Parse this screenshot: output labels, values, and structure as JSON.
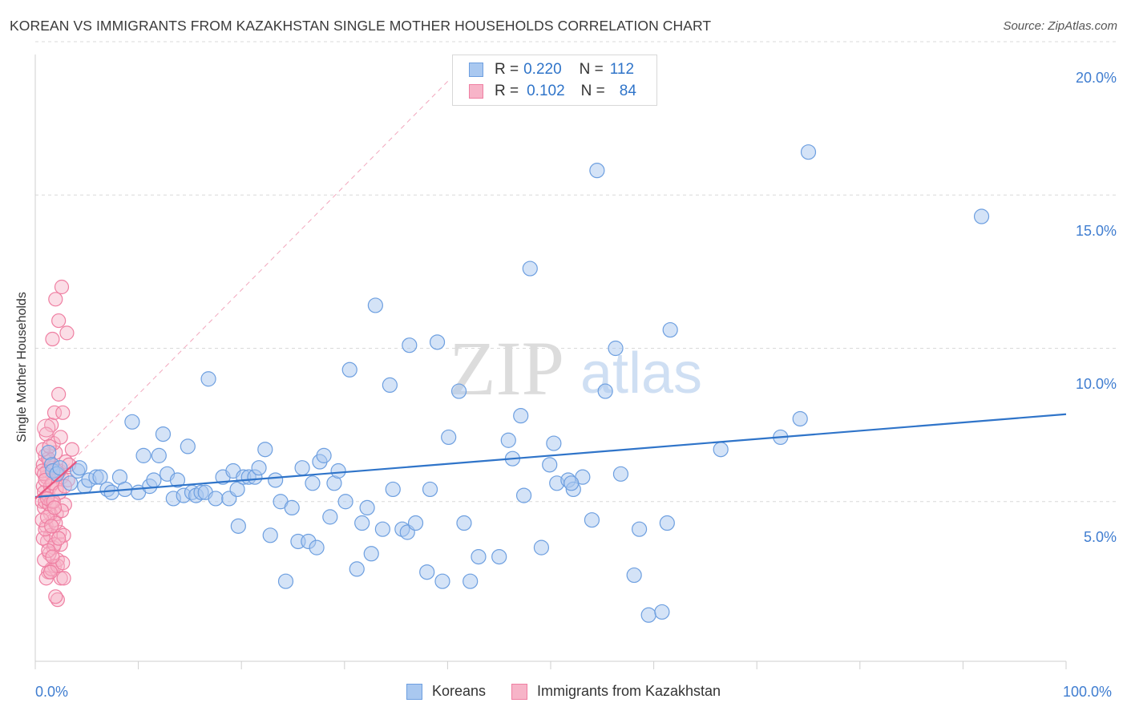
{
  "header": {
    "title": "KOREAN VS IMMIGRANTS FROM KAZAKHSTAN SINGLE MOTHER HOUSEHOLDS CORRELATION CHART",
    "source": "Source: ZipAtlas.com"
  },
  "watermark": {
    "zip": "ZIP",
    "atlas": "atlas"
  },
  "colors": {
    "blue_fill": "#a9c8f0",
    "blue_stroke": "#6d9fe0",
    "blue_line": "#2f74c9",
    "pink_fill": "#f7b4c8",
    "pink_stroke": "#ef7fa2",
    "pink_line": "#e8557f",
    "grid": "#d9d9d9",
    "tick_text": "#3f7dd0"
  },
  "legend": {
    "rows": [
      {
        "r_label": "R = ",
        "r_value": "0.220",
        "n_label": "N = ",
        "n_value": "112"
      },
      {
        "r_label": "R = ",
        "r_value": "0.102",
        "n_label": "N = ",
        "n_value": "84"
      }
    ]
  },
  "bottom_legend": {
    "series1": "Koreans",
    "series2": "Immigrants from Kazakhstan"
  },
  "chart_data": {
    "type": "scatter",
    "title": "KOREAN VS IMMIGRANTS FROM KAZAKHSTAN SINGLE MOTHER HOUSEHOLDS CORRELATION CHART",
    "xlabel": "",
    "ylabel": "Single Mother Households",
    "xlim": [
      0,
      100
    ],
    "ylim": [
      0,
      20
    ],
    "x_tick_labels": [
      "0.0%",
      "100.0%"
    ],
    "y_tick_labels": [
      "5.0%",
      "10.0%",
      "15.0%",
      "20.0%"
    ],
    "y_ticks": [
      5,
      10,
      15,
      20
    ],
    "grid": true,
    "series": [
      {
        "name": "Koreans",
        "r": 0.22,
        "n": 112,
        "trend": {
          "x0": 0,
          "y0": 5.15,
          "x1": 100,
          "y1": 7.85
        },
        "points": [
          [
            1.3,
            6.6
          ],
          [
            1.6,
            6.2
          ],
          [
            1.7,
            6.0
          ],
          [
            2.1,
            5.9
          ],
          [
            2.4,
            6.1
          ],
          [
            3.4,
            5.6
          ],
          [
            4.1,
            6.0
          ],
          [
            4.3,
            6.1
          ],
          [
            4.8,
            5.5
          ],
          [
            5.2,
            5.7
          ],
          [
            5.9,
            5.8
          ],
          [
            6.3,
            5.8
          ],
          [
            7.0,
            5.4
          ],
          [
            7.4,
            5.3
          ],
          [
            8.2,
            5.8
          ],
          [
            8.7,
            5.4
          ],
          [
            9.4,
            7.6
          ],
          [
            10.0,
            5.3
          ],
          [
            10.5,
            6.5
          ],
          [
            11.1,
            5.5
          ],
          [
            11.5,
            5.7
          ],
          [
            12.0,
            6.5
          ],
          [
            12.4,
            7.2
          ],
          [
            12.8,
            5.9
          ],
          [
            13.4,
            5.1
          ],
          [
            13.8,
            5.7
          ],
          [
            14.4,
            5.2
          ],
          [
            14.8,
            6.8
          ],
          [
            15.2,
            5.3
          ],
          [
            15.6,
            5.2
          ],
          [
            16.1,
            5.3
          ],
          [
            16.5,
            5.3
          ],
          [
            16.8,
            9.0
          ],
          [
            17.5,
            5.1
          ],
          [
            18.2,
            5.8
          ],
          [
            18.8,
            5.1
          ],
          [
            19.2,
            6.0
          ],
          [
            19.6,
            5.4
          ],
          [
            19.7,
            4.2
          ],
          [
            20.2,
            5.8
          ],
          [
            20.7,
            5.8
          ],
          [
            21.3,
            5.8
          ],
          [
            21.7,
            6.1
          ],
          [
            22.3,
            6.7
          ],
          [
            22.8,
            3.9
          ],
          [
            23.3,
            5.7
          ],
          [
            23.8,
            5.0
          ],
          [
            24.3,
            2.4
          ],
          [
            24.9,
            4.8
          ],
          [
            25.5,
            3.7
          ],
          [
            25.9,
            6.1
          ],
          [
            26.5,
            3.7
          ],
          [
            26.9,
            5.6
          ],
          [
            27.3,
            3.5
          ],
          [
            27.6,
            6.3
          ],
          [
            28.0,
            6.5
          ],
          [
            28.6,
            4.5
          ],
          [
            29.0,
            5.6
          ],
          [
            29.4,
            6.0
          ],
          [
            30.1,
            5.0
          ],
          [
            30.5,
            9.3
          ],
          [
            31.2,
            2.8
          ],
          [
            31.7,
            4.3
          ],
          [
            32.2,
            4.8
          ],
          [
            32.6,
            3.3
          ],
          [
            33.0,
            11.4
          ],
          [
            33.7,
            4.1
          ],
          [
            34.4,
            8.8
          ],
          [
            34.7,
            5.4
          ],
          [
            35.6,
            4.1
          ],
          [
            36.1,
            4.0
          ],
          [
            36.3,
            10.1
          ],
          [
            36.9,
            4.3
          ],
          [
            38.0,
            2.7
          ],
          [
            38.3,
            5.4
          ],
          [
            39.0,
            10.2
          ],
          [
            39.5,
            2.4
          ],
          [
            40.1,
            7.1
          ],
          [
            41.1,
            8.6
          ],
          [
            41.6,
            4.3
          ],
          [
            42.2,
            2.4
          ],
          [
            43.0,
            3.2
          ],
          [
            45.0,
            3.2
          ],
          [
            45.9,
            7.0
          ],
          [
            46.3,
            6.4
          ],
          [
            47.1,
            7.8
          ],
          [
            47.4,
            5.2
          ],
          [
            48.0,
            12.6
          ],
          [
            49.1,
            3.5
          ],
          [
            49.9,
            6.2
          ],
          [
            50.3,
            6.9
          ],
          [
            50.6,
            5.6
          ],
          [
            51.7,
            5.7
          ],
          [
            52.2,
            5.4
          ],
          [
            53.1,
            5.8
          ],
          [
            54.0,
            4.4
          ],
          [
            54.5,
            15.8
          ],
          [
            55.3,
            8.6
          ],
          [
            56.3,
            10.0
          ],
          [
            56.8,
            5.9
          ],
          [
            58.1,
            2.6
          ],
          [
            58.6,
            4.1
          ],
          [
            59.5,
            1.3
          ],
          [
            60.8,
            1.4
          ],
          [
            61.3,
            4.3
          ],
          [
            61.6,
            10.6
          ],
          [
            66.5,
            6.7
          ],
          [
            72.3,
            7.1
          ],
          [
            74.2,
            7.7
          ],
          [
            75.0,
            16.4
          ],
          [
            91.8,
            14.3
          ],
          [
            52.0,
            5.6
          ]
        ]
      },
      {
        "name": "Immigrants from Kazakhstan",
        "r": 0.102,
        "n": 84,
        "trend": {
          "x0": 0,
          "y0": 5.1,
          "x1": 4.0,
          "y1": 6.3
        },
        "points": [
          [
            0.2,
            5.0
          ],
          [
            0.3,
            5.5
          ],
          [
            0.3,
            6.2
          ],
          [
            0.4,
            4.8
          ],
          [
            0.4,
            5.3
          ],
          [
            0.5,
            6.5
          ],
          [
            0.5,
            5.0
          ],
          [
            0.6,
            4.2
          ],
          [
            0.6,
            5.8
          ],
          [
            0.7,
            3.7
          ],
          [
            0.7,
            6.0
          ],
          [
            0.8,
            5.2
          ],
          [
            0.8,
            2.7
          ],
          [
            0.9,
            4.9
          ],
          [
            0.9,
            6.3
          ],
          [
            1.0,
            5.5
          ],
          [
            1.0,
            3.9
          ],
          [
            1.1,
            7.5
          ],
          [
            1.1,
            5.0
          ],
          [
            1.2,
            10.3
          ],
          [
            1.2,
            6.1
          ],
          [
            1.3,
            4.4
          ],
          [
            1.3,
            3.5
          ],
          [
            1.4,
            7.9
          ],
          [
            1.4,
            2.9
          ],
          [
            1.5,
            11.6
          ],
          [
            1.5,
            6.6
          ],
          [
            1.6,
            4.6
          ],
          [
            1.6,
            5.4
          ],
          [
            1.7,
            1.8
          ],
          [
            1.7,
            3.1
          ],
          [
            1.8,
            10.9
          ],
          [
            1.8,
            8.5
          ],
          [
            1.9,
            4.0
          ],
          [
            1.9,
            6.0
          ],
          [
            2.0,
            2.5
          ],
          [
            2.0,
            3.6
          ],
          [
            2.1,
            12.0
          ],
          [
            2.1,
            5.8
          ],
          [
            2.2,
            7.9
          ],
          [
            2.3,
            2.5
          ],
          [
            2.3,
            3.9
          ],
          [
            2.4,
            4.9
          ],
          [
            2.5,
            6.3
          ],
          [
            2.6,
            10.5
          ],
          [
            2.7,
            5.7
          ],
          [
            2.8,
            6.2
          ],
          [
            3.1,
            6.7
          ],
          [
            0.2,
            6.0
          ],
          [
            0.3,
            3.8
          ],
          [
            0.4,
            5.9
          ],
          [
            0.5,
            4.1
          ],
          [
            0.6,
            2.5
          ],
          [
            0.7,
            5.1
          ],
          [
            0.8,
            6.4
          ],
          [
            0.9,
            3.3
          ],
          [
            1.0,
            4.6
          ],
          [
            1.1,
            2.8
          ],
          [
            1.2,
            5.6
          ],
          [
            1.3,
            6.9
          ],
          [
            1.4,
            3.6
          ],
          [
            1.5,
            4.3
          ],
          [
            1.6,
            5.9
          ],
          [
            1.7,
            2.9
          ],
          [
            1.8,
            3.8
          ],
          [
            1.9,
            5.3
          ],
          [
            2.0,
            7.1
          ],
          [
            2.1,
            4.7
          ],
          [
            2.2,
            3.0
          ],
          [
            2.4,
            5.5
          ],
          [
            0.2,
            4.4
          ],
          [
            0.3,
            6.7
          ],
          [
            0.4,
            3.1
          ],
          [
            0.5,
            5.7
          ],
          [
            0.6,
            7.2
          ],
          [
            0.7,
            4.5
          ],
          [
            0.8,
            3.4
          ],
          [
            0.9,
            6.8
          ],
          [
            1.0,
            2.7
          ],
          [
            1.1,
            4.2
          ],
          [
            1.2,
            3.2
          ],
          [
            1.3,
            5.0
          ],
          [
            1.4,
            4.8
          ],
          [
            1.5,
            1.9
          ]
        ]
      }
    ]
  }
}
